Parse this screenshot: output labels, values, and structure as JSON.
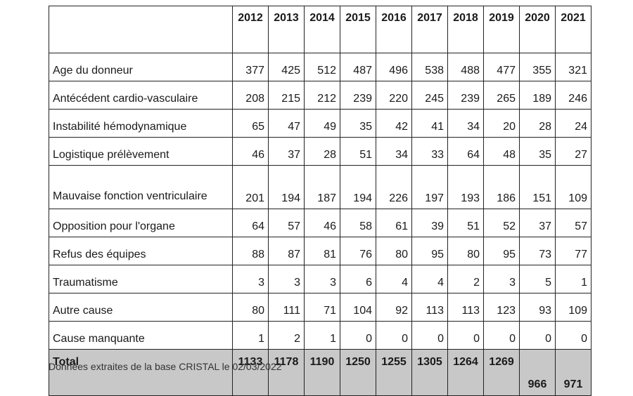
{
  "table": {
    "years": [
      "2012",
      "2013",
      "2014",
      "2015",
      "2016",
      "2017",
      "2018",
      "2019",
      "2020",
      "2021"
    ],
    "rows": [
      {
        "label": "Age du donneur",
        "values": [
          "377",
          "425",
          "512",
          "487",
          "496",
          "538",
          "488",
          "477",
          "355",
          "321"
        ]
      },
      {
        "label": "Antécédent cardio-vasculaire",
        "values": [
          "208",
          "215",
          "212",
          "239",
          "220",
          "245",
          "239",
          "265",
          "189",
          "246"
        ]
      },
      {
        "label": "Instabilité hémodynamique",
        "values": [
          "65",
          "47",
          "49",
          "35",
          "42",
          "41",
          "34",
          "20",
          "28",
          "24"
        ]
      },
      {
        "label": "Logistique prélèvement",
        "values": [
          "46",
          "37",
          "28",
          "51",
          "34",
          "33",
          "64",
          "48",
          "35",
          "27"
        ]
      },
      {
        "label": "Mauvaise fonction ventriculaire",
        "values": [
          "201",
          "194",
          "187",
          "194",
          "226",
          "197",
          "193",
          "186",
          "151",
          "109"
        ]
      },
      {
        "label": "Opposition pour l'organe",
        "values": [
          "64",
          "57",
          "46",
          "58",
          "61",
          "39",
          "51",
          "52",
          "37",
          "57"
        ]
      },
      {
        "label": "Refus des équipes",
        "values": [
          "88",
          "87",
          "81",
          "76",
          "80",
          "95",
          "80",
          "95",
          "73",
          "77"
        ]
      },
      {
        "label": "Traumatisme",
        "values": [
          "3",
          "3",
          "3",
          "6",
          "4",
          "4",
          "2",
          "3",
          "5",
          "1"
        ]
      },
      {
        "label": "Autre cause",
        "values": [
          "80",
          "111",
          "71",
          "104",
          "92",
          "113",
          "113",
          "123",
          "93",
          "109"
        ]
      },
      {
        "label": "Cause manquante",
        "values": [
          "1",
          "2",
          "1",
          "0",
          "0",
          "0",
          "0",
          "0",
          "0",
          "0"
        ]
      }
    ],
    "total": {
      "label": "Total",
      "values": [
        "1133",
        "1178",
        "1190",
        "1250",
        "1255",
        "1305",
        "1264",
        "1269",
        "966",
        "971"
      ]
    }
  },
  "source_note": "Données extraites de la base CRISTAL le 02/03/2022"
}
